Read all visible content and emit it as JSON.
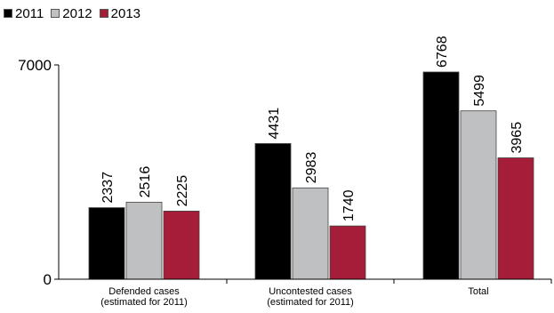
{
  "chart_data": {
    "type": "bar",
    "categories": [
      [
        "Defended cases",
        "(estimated for 2011)"
      ],
      [
        "Uncontested cases",
        "(estimated for 2011)"
      ],
      [
        "Total"
      ]
    ],
    "series": [
      {
        "name": "2011",
        "color": "#000000",
        "values": [
          2337,
          4431,
          6768
        ]
      },
      {
        "name": "2012",
        "color": "#bfc0c2",
        "values": [
          2516,
          2983,
          5499
        ]
      },
      {
        "name": "2013",
        "color": "#a51d38",
        "values": [
          2225,
          1740,
          3965
        ]
      }
    ],
    "ylim": [
      0,
      7000
    ],
    "yticks": [
      "0",
      "7000"
    ],
    "legend_position": "top-left",
    "title": "",
    "xlabel": "",
    "ylabel": ""
  }
}
